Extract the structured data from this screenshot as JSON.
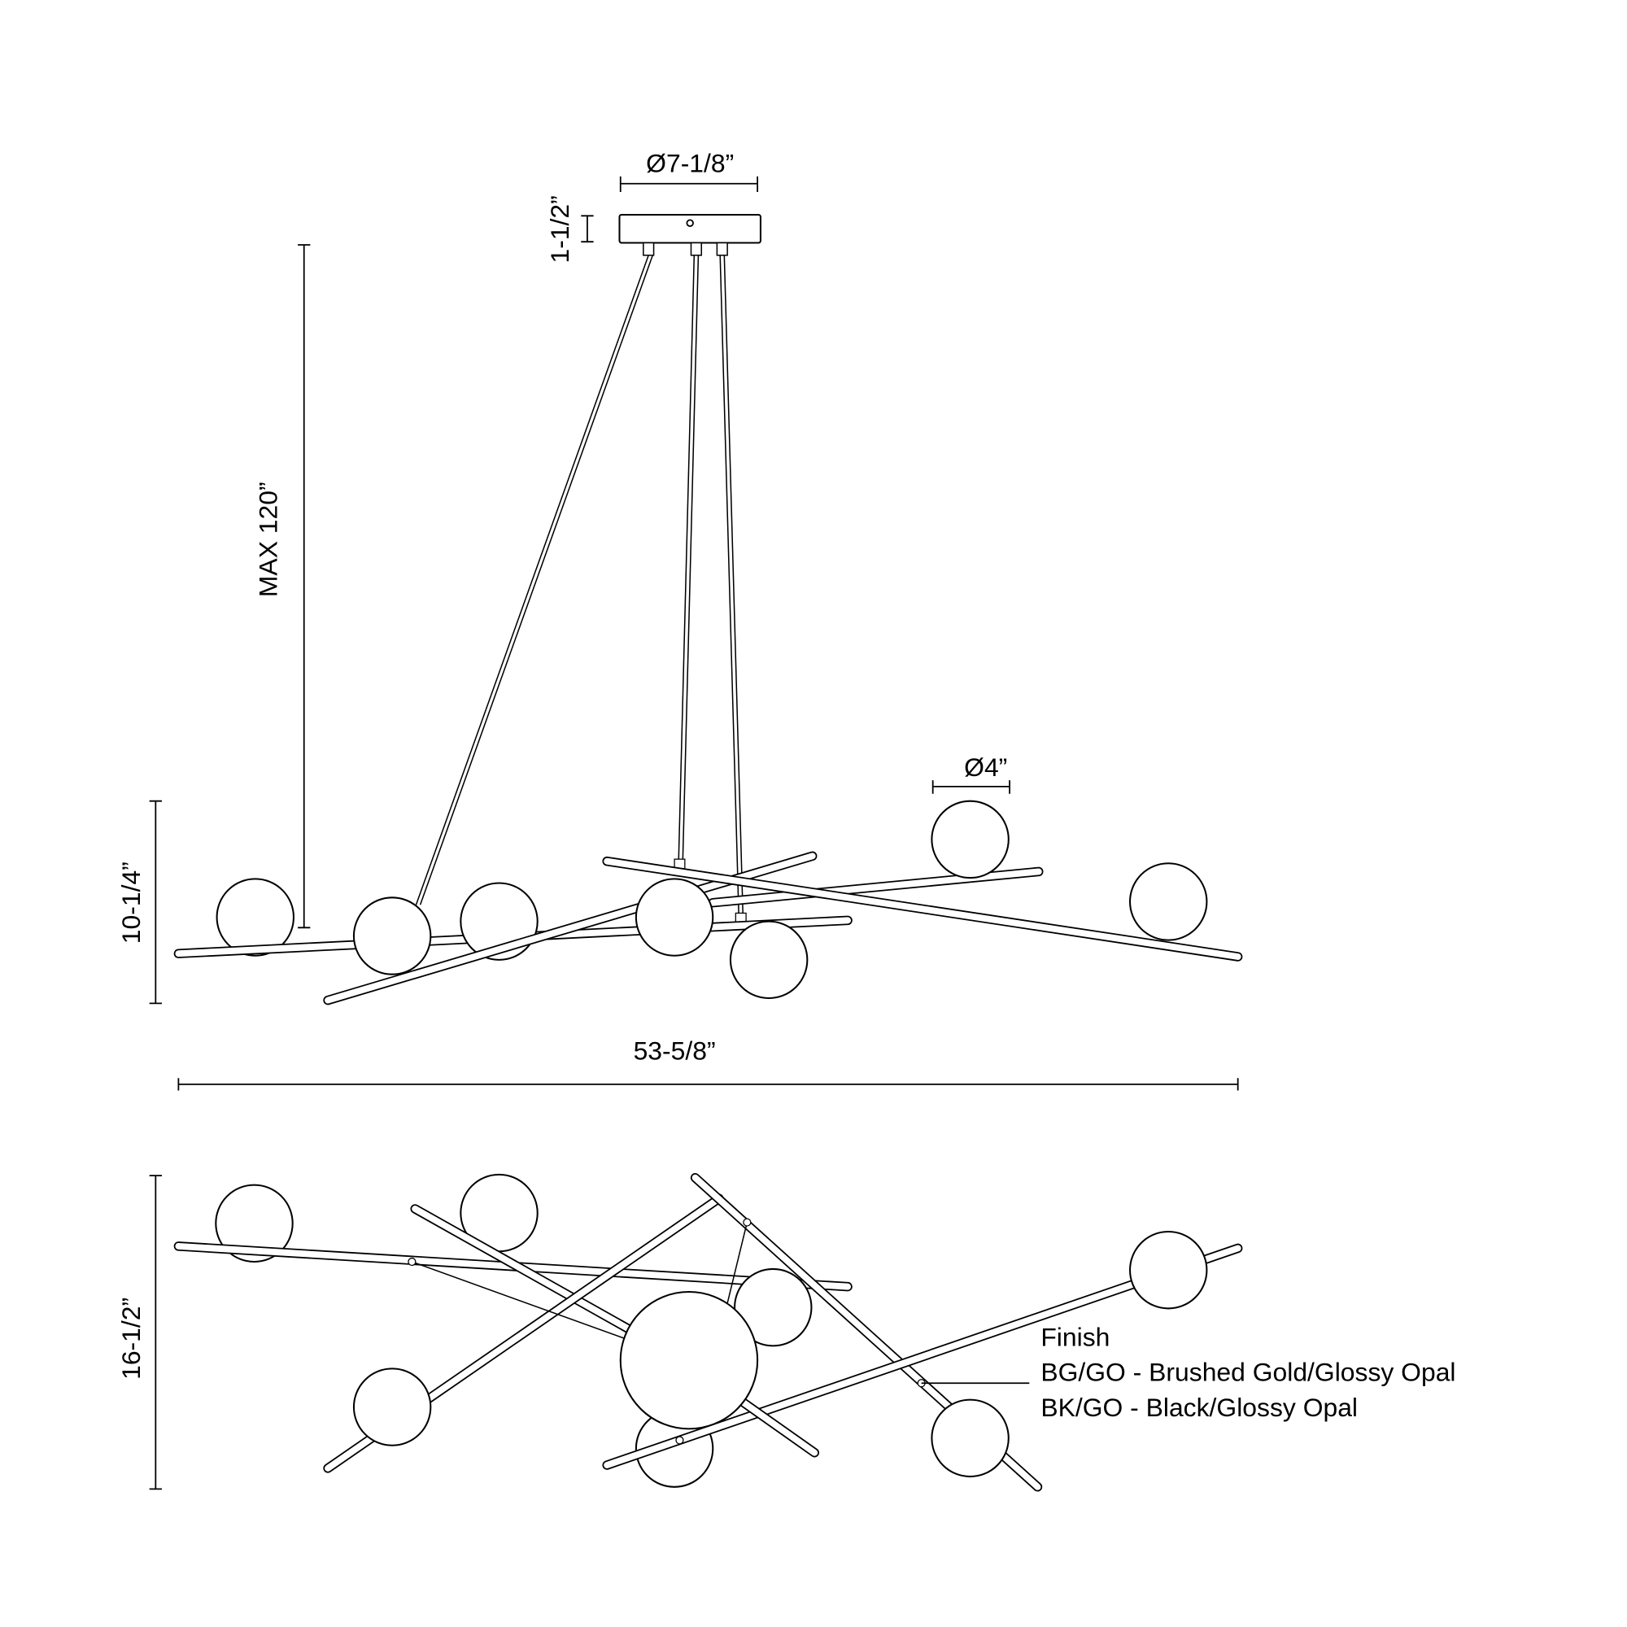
{
  "dimensions": {
    "canopy_diameter": "Ø7-1/8”",
    "canopy_height": "1-1/2”",
    "max_height": "MAX 120”",
    "fixture_height": "10-1/4”",
    "globe_diameter": "Ø4”",
    "overall_width": "53-5/8”",
    "overall_depth": "16-1/2”"
  },
  "finish": {
    "title": "Finish",
    "options": [
      "BG/GO - Brushed Gold/Glossy Opal",
      "BK/GO - Black/Glossy Opal"
    ]
  },
  "colors": {
    "line": "#000000",
    "background": "#ffffff"
  }
}
